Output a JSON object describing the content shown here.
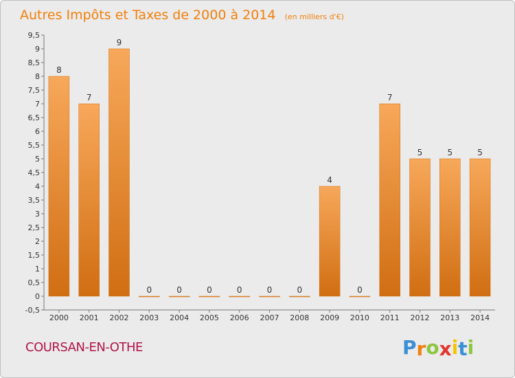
{
  "header": {
    "title": "Autres Impôts et Taxes de 2000 à 2014",
    "subtitle": "(en milliers d'€)"
  },
  "footer": {
    "commune": "COURSAN-EN-OTHE",
    "logo": [
      "P",
      "r",
      "o",
      "x",
      "i",
      "t",
      "i"
    ]
  },
  "colors": {
    "bar": "#f29a3f",
    "bar_light": "#f7a85a",
    "bar_dark": "#d06e12",
    "title": "#f07f0b",
    "commune": "#b0144a",
    "logo": [
      "#3a8fd6",
      "#f07f0b",
      "#8dc63f",
      "#e3342f",
      "#f5c400",
      "#3a8fd6",
      "#8dc63f"
    ]
  },
  "chart_data": {
    "type": "bar",
    "title": "Autres Impôts et Taxes de 2000 à 2014",
    "subtitle": "(en milliers d'€)",
    "categories": [
      "2000",
      "2001",
      "2002",
      "2003",
      "2004",
      "2005",
      "2006",
      "2007",
      "2008",
      "2009",
      "2010",
      "2011",
      "2012",
      "2013",
      "2014"
    ],
    "values": [
      8,
      7,
      9,
      0,
      0,
      0,
      0,
      0,
      0,
      4,
      0,
      7,
      5,
      5,
      5
    ],
    "ylim": [
      -0.5,
      9.5
    ],
    "yticks": [
      "-0,5",
      "0",
      "0,5",
      "1",
      "1,5",
      "2",
      "2,5",
      "3",
      "3,5",
      "4",
      "4,5",
      "5",
      "5,5",
      "6",
      "6,5",
      "7",
      "7,5",
      "8",
      "8,5",
      "9",
      "9,5"
    ],
    "grid": false
  }
}
